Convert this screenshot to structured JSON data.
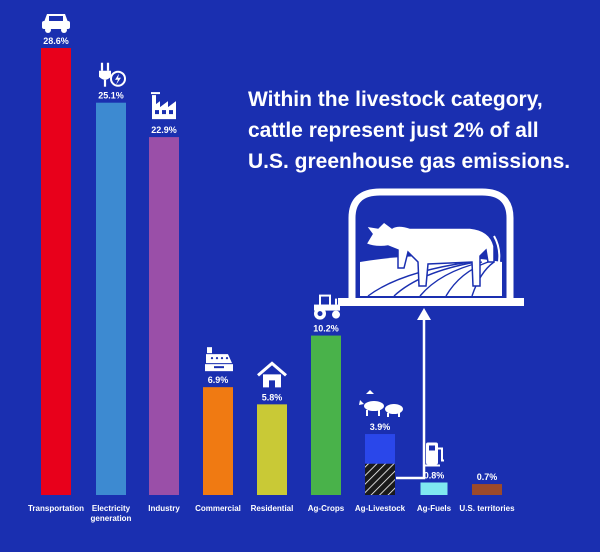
{
  "chart_data": {
    "type": "bar",
    "title": "",
    "xlabel": "",
    "ylabel": "",
    "ylim": [
      0,
      28.6
    ],
    "grid": false,
    "categories": [
      "Transportation",
      "Electricity generation",
      "Industry",
      "Commercial",
      "Residential",
      "Ag-Crops",
      "Ag-Livestock",
      "Ag-Fuels",
      "U.S. territories"
    ],
    "category_lines": [
      [
        "Transportation"
      ],
      [
        "Electricity",
        "generation"
      ],
      [
        "Industry"
      ],
      [
        "Commercial"
      ],
      [
        "Residential"
      ],
      [
        "Ag-Crops"
      ],
      [
        "Ag-Livestock"
      ],
      [
        "Ag-Fuels"
      ],
      [
        "U.S. territories"
      ]
    ],
    "values": [
      28.6,
      25.1,
      22.9,
      6.9,
      5.8,
      10.2,
      3.9,
      0.8,
      0.7
    ],
    "value_labels": [
      "28.6%",
      "25.1%",
      "22.9%",
      "6.9%",
      "5.8%",
      "10.2%",
      "3.9%",
      "0.8%",
      "0.7%"
    ],
    "colors": [
      "#e8001b",
      "#3d8ad1",
      "#9a4fa8",
      "#f07a12",
      "#c9c936",
      "#49b24a",
      "#2a47ea",
      "#7fe8f0",
      "#9c4a2a"
    ],
    "icons": [
      "car-icon",
      "power-plug-icon",
      "factory-icon",
      "cash-register-icon",
      "house-icon",
      "tractor-icon",
      "cow-pig-icon",
      "fuel-pump-icon",
      ""
    ],
    "highlight": {
      "category": "Ag-Livestock",
      "cattle_share_value": 2.0,
      "hatched_color": "#1a1a1a",
      "hatch_line_color": "#ffffff"
    }
  },
  "callout": {
    "lines": [
      "Within the livestock category,",
      "cattle represent just 2% of all",
      "U.S. greenhouse gas emissions."
    ],
    "icon": "cow-barn-icon"
  }
}
